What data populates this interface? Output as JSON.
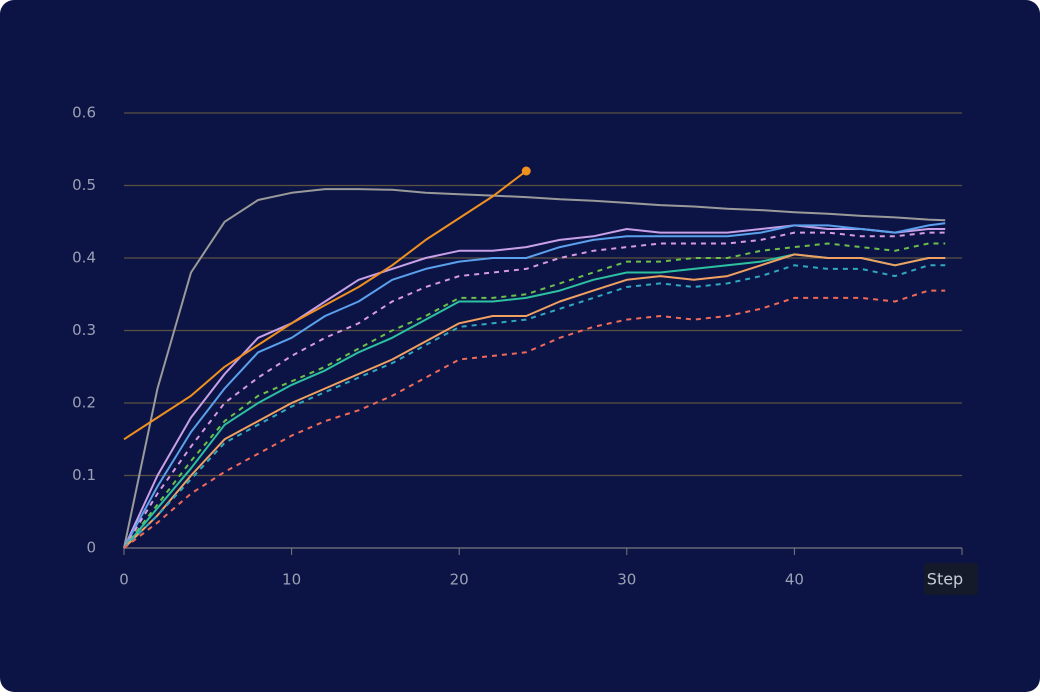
{
  "chart_data": {
    "type": "line",
    "x_label": "Step",
    "x": [
      0,
      2,
      4,
      6,
      8,
      10,
      12,
      14,
      16,
      18,
      20,
      22,
      24,
      26,
      28,
      30,
      32,
      34,
      36,
      38,
      40,
      42,
      44,
      46,
      48,
      49
    ],
    "xlim": [
      0,
      50
    ],
    "xticks": [
      0,
      10,
      20,
      30,
      40
    ],
    "ylim": [
      0,
      0.6
    ],
    "yticks": [
      0,
      0.1,
      0.2,
      0.3,
      0.4,
      0.5,
      0.6
    ],
    "grid": true,
    "series": [
      {
        "color": "#9a9a9a",
        "dash": false,
        "values": [
          0,
          0.22,
          0.38,
          0.45,
          0.48,
          0.49,
          0.495,
          0.495,
          0.494,
          0.49,
          0.488,
          0.486,
          0.484,
          0.481,
          0.479,
          0.476,
          0.473,
          0.471,
          0.468,
          0.466,
          0.463,
          0.461,
          0.458,
          0.456,
          0.453,
          0.452
        ]
      },
      {
        "color": "#c8a0e8",
        "dash": false,
        "values": [
          0,
          0.1,
          0.18,
          0.24,
          0.29,
          0.31,
          0.34,
          0.37,
          0.385,
          0.4,
          0.41,
          0.41,
          0.415,
          0.425,
          0.43,
          0.44,
          0.435,
          0.435,
          0.435,
          0.44,
          0.445,
          0.44,
          0.44,
          0.435,
          0.44,
          0.44
        ]
      },
      {
        "color": "#5aa0ec",
        "dash": false,
        "values": [
          0,
          0.085,
          0.16,
          0.22,
          0.27,
          0.29,
          0.32,
          0.34,
          0.37,
          0.385,
          0.395,
          0.4,
          0.4,
          0.415,
          0.425,
          0.43,
          0.43,
          0.43,
          0.43,
          0.435,
          0.445,
          0.445,
          0.44,
          0.435,
          0.445,
          0.448
        ]
      },
      {
        "color": "#d89ae0",
        "dash": true,
        "values": [
          0,
          0.075,
          0.14,
          0.2,
          0.235,
          0.265,
          0.29,
          0.31,
          0.34,
          0.36,
          0.375,
          0.38,
          0.385,
          0.4,
          0.41,
          0.415,
          0.42,
          0.42,
          0.42,
          0.425,
          0.435,
          0.435,
          0.43,
          0.43,
          0.435,
          0.435
        ]
      },
      {
        "color": "#6cc04a",
        "dash": true,
        "values": [
          0,
          0.06,
          0.12,
          0.175,
          0.21,
          0.23,
          0.25,
          0.275,
          0.3,
          0.32,
          0.345,
          0.345,
          0.35,
          0.365,
          0.38,
          0.395,
          0.395,
          0.4,
          0.4,
          0.41,
          0.415,
          0.42,
          0.415,
          0.41,
          0.42,
          0.42
        ]
      },
      {
        "color": "#2cc0a0",
        "dash": false,
        "values": [
          0,
          0.055,
          0.11,
          0.17,
          0.2,
          0.225,
          0.245,
          0.27,
          0.29,
          0.315,
          0.34,
          0.34,
          0.345,
          0.355,
          0.37,
          0.38,
          0.38,
          0.385,
          0.39,
          0.395,
          0.405,
          0.4,
          0.4,
          0.39,
          0.4,
          0.4
        ]
      },
      {
        "color": "#f0a060",
        "dash": false,
        "values": [
          0,
          0.045,
          0.1,
          0.15,
          0.175,
          0.2,
          0.22,
          0.24,
          0.26,
          0.285,
          0.31,
          0.32,
          0.32,
          0.34,
          0.355,
          0.37,
          0.375,
          0.37,
          0.375,
          0.39,
          0.405,
          0.4,
          0.4,
          0.39,
          0.4,
          0.4
        ]
      },
      {
        "color": "#30a8c0",
        "dash": true,
        "values": [
          0,
          0.045,
          0.095,
          0.145,
          0.17,
          0.195,
          0.215,
          0.235,
          0.255,
          0.28,
          0.305,
          0.31,
          0.315,
          0.33,
          0.345,
          0.36,
          0.365,
          0.36,
          0.365,
          0.375,
          0.39,
          0.385,
          0.385,
          0.375,
          0.39,
          0.39
        ]
      },
      {
        "color": "#f06a5a",
        "dash": true,
        "values": [
          0,
          0.035,
          0.075,
          0.105,
          0.13,
          0.155,
          0.175,
          0.19,
          0.21,
          0.235,
          0.26,
          0.265,
          0.27,
          0.29,
          0.305,
          0.315,
          0.32,
          0.315,
          0.32,
          0.33,
          0.345,
          0.345,
          0.345,
          0.34,
          0.355,
          0.355
        ]
      },
      {
        "color": "#f0901e",
        "dash": false,
        "end_marker": true,
        "values": [
          0.15,
          0.18,
          0.21,
          0.25,
          0.28,
          0.31,
          0.335,
          0.36,
          0.39,
          0.425,
          0.455,
          0.485,
          0.52,
          null,
          null,
          null,
          null,
          null,
          null,
          null,
          null,
          null,
          null,
          null,
          null,
          null
        ]
      }
    ]
  }
}
